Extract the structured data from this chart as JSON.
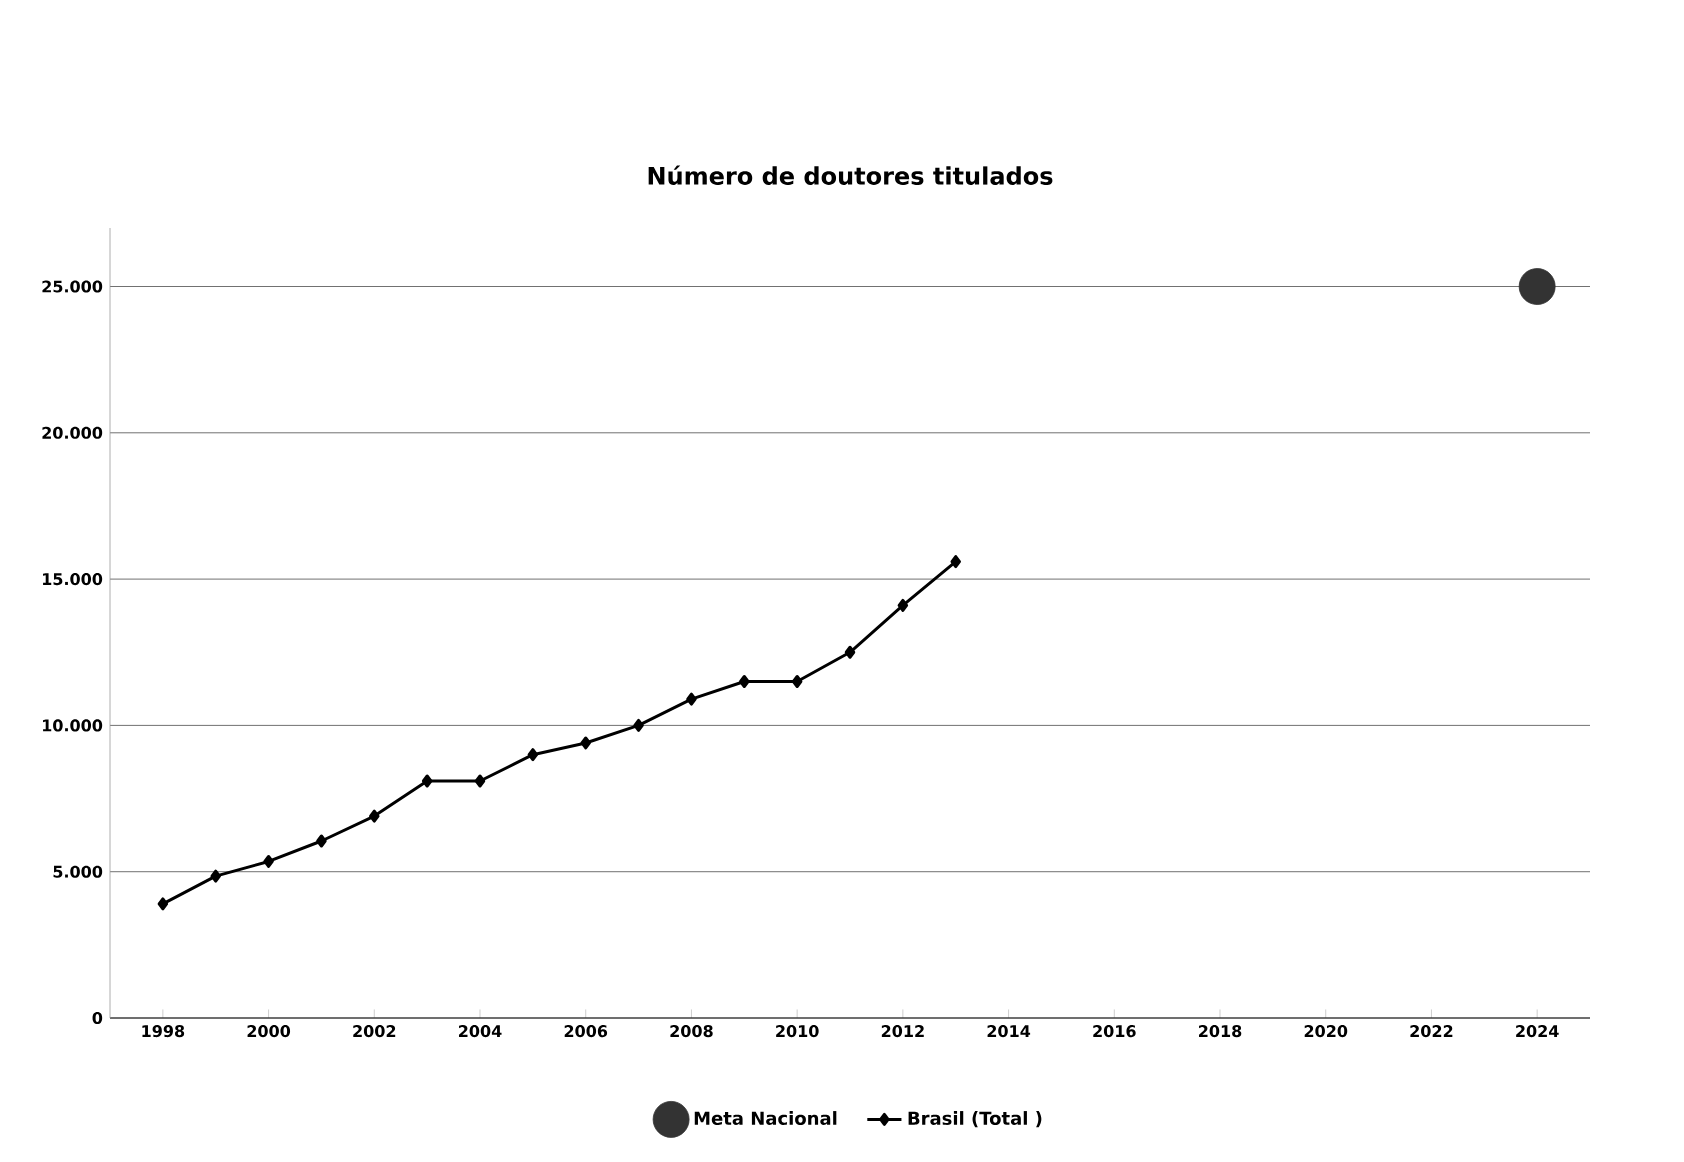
{
  "chart_data": {
    "type": "line",
    "title": "Número de doutores titulados",
    "xlim": [
      1997,
      2025
    ],
    "ylim": [
      0,
      27000
    ],
    "xticks": [
      1998,
      2000,
      2002,
      2004,
      2006,
      2008,
      2010,
      2012,
      2014,
      2016,
      2018,
      2020,
      2022,
      2024
    ],
    "yticks": [
      0,
      {
        "value": 5000,
        "label": "5.000"
      },
      {
        "value": 10000,
        "label": "10.000"
      },
      {
        "value": 15000,
        "label": "15.000"
      },
      {
        "value": 20000,
        "label": "20.000"
      },
      {
        "value": 25000,
        "label": "25.000"
      }
    ],
    "grid": "y",
    "legend": "bottom",
    "series": [
      {
        "name": "Meta Nacional",
        "type": "scatter",
        "marker": "circle",
        "color": "#333333",
        "x": [
          2024
        ],
        "values": [
          25000
        ]
      },
      {
        "name": "Brasil (Total )",
        "marker": "diamond",
        "color": "#000000",
        "x": [
          1998,
          1999,
          2000,
          2001,
          2002,
          2003,
          2004,
          2005,
          2006,
          2007,
          2008,
          2009,
          2010,
          2011,
          2012,
          2013
        ],
        "values": [
          3900,
          4850,
          5350,
          6050,
          6900,
          8100,
          8100,
          9000,
          9400,
          10000,
          10900,
          11500,
          11500,
          12500,
          14100,
          15600
        ]
      }
    ]
  }
}
